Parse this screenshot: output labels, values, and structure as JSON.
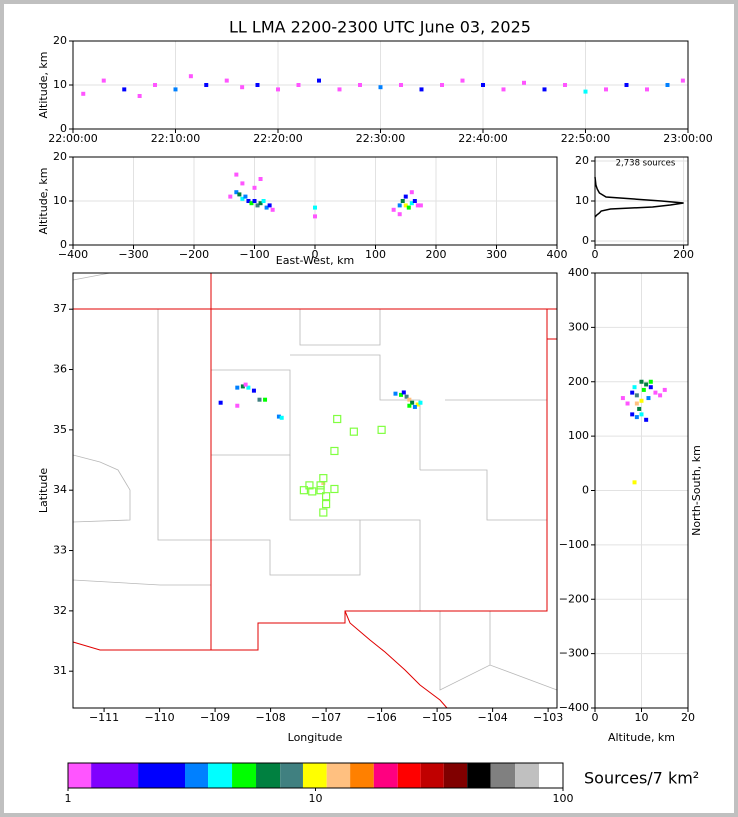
{
  "chart_data": [
    {
      "type": "scatter",
      "title": "LL LMA 2200-2300 UTC June 03, 2025",
      "ylabel": "Altitude, km",
      "xlim": [
        0,
        60
      ],
      "ylim": [
        0,
        20
      ],
      "xticks": [
        {
          "value": 0,
          "label": "22:00:00"
        },
        {
          "value": 10,
          "label": "22:10:00"
        },
        {
          "value": 20,
          "label": "22:20:00"
        },
        {
          "value": 30,
          "label": "22:30:00"
        },
        {
          "value": 40,
          "label": "22:40:00"
        },
        {
          "value": 50,
          "label": "22:50:00"
        },
        {
          "value": 60,
          "label": "23:00:00"
        }
      ],
      "yticks": [
        0,
        10,
        20
      ],
      "grid": true,
      "series": [
        {
          "x": [
            1,
            3,
            5,
            6.5,
            8,
            10,
            11.5,
            13,
            15,
            16.5,
            18,
            20,
            22,
            24,
            26,
            28,
            30,
            32,
            34,
            36,
            38,
            40,
            42,
            44,
            46,
            48,
            50,
            52,
            54,
            56,
            58,
            59.5
          ],
          "y": [
            8,
            11,
            9,
            7.5,
            10,
            9,
            12,
            10,
            11,
            9.5,
            10,
            9,
            10,
            11,
            9,
            10,
            9.5,
            10,
            9,
            10,
            11,
            10,
            9,
            10.5,
            9,
            10,
            8.5,
            9,
            10,
            9,
            10,
            11
          ],
          "density": [
            1,
            1,
            2,
            1,
            1,
            3,
            1,
            2,
            1,
            1,
            2,
            1,
            1,
            2,
            1,
            1,
            3,
            1,
            2,
            1,
            1,
            2,
            1,
            1,
            2,
            1,
            4,
            1,
            2,
            1,
            3,
            1
          ]
        }
      ]
    },
    {
      "type": "scatter",
      "xlabel": "East-West, km",
      "ylabel": "Altitude, km",
      "xlim": [
        -400,
        400
      ],
      "ylim": [
        0,
        20
      ],
      "xticks": [
        {
          "value": -400,
          "label": "−400"
        },
        {
          "value": -300,
          "label": "−300"
        },
        {
          "value": -200,
          "label": "−200"
        },
        {
          "value": -100,
          "label": "−100"
        },
        0,
        100,
        200,
        300,
        400
      ],
      "yticks": [
        0,
        10,
        20
      ],
      "grid": true,
      "series": [
        {
          "x": [
            -140,
            -130,
            -125,
            -120,
            -115,
            -110,
            -105,
            -100,
            -95,
            -90,
            -85,
            -80,
            -75,
            -70,
            -130,
            -120,
            -100,
            -90,
            0,
            0,
            130,
            140,
            145,
            150,
            155,
            160,
            165,
            170,
            150,
            160,
            140,
            175
          ],
          "y": [
            11,
            12,
            11.5,
            10.5,
            11,
            10,
            9.5,
            10,
            9,
            9.5,
            10,
            8.5,
            9,
            8,
            16,
            14,
            13,
            15,
            8.5,
            6.5,
            8,
            9,
            10,
            9,
            8.5,
            9.5,
            10,
            9,
            11,
            12,
            7,
            9
          ],
          "density": [
            1,
            3,
            6,
            4,
            3,
            2,
            5,
            2,
            8,
            6,
            4,
            3,
            2,
            1,
            1,
            1,
            1,
            1,
            4,
            1,
            1,
            3,
            6,
            9,
            5,
            4,
            2,
            1,
            2,
            1,
            1,
            1
          ]
        }
      ]
    },
    {
      "type": "line",
      "annotation": "2,738 sources",
      "xlim": [
        0,
        210
      ],
      "ylim": [
        -1,
        21
      ],
      "xticks": [
        0,
        200
      ],
      "yticks": [
        0,
        10,
        20
      ],
      "grid": true,
      "color": "#000000",
      "series": [
        {
          "x": [
            0,
            4,
            10,
            14,
            35,
            130,
            170,
            200,
            150,
            25,
            10,
            5,
            2,
            0
          ],
          "y": [
            6,
            6.5,
            7,
            7.5,
            8,
            8.5,
            9,
            9.5,
            10,
            11,
            12,
            13,
            14,
            16
          ]
        }
      ]
    },
    {
      "type": "scatter",
      "xlabel": "Longitude",
      "ylabel": "Latitude",
      "xlim": [
        -111.56,
        -102.84
      ],
      "ylim": [
        30.39,
        37.6
      ],
      "xticks": [
        {
          "value": -111,
          "label": "−111"
        },
        {
          "value": -110,
          "label": "−110"
        },
        {
          "value": -109,
          "label": "−109"
        },
        {
          "value": -108,
          "label": "−108"
        },
        {
          "value": -107,
          "label": "−107"
        },
        {
          "value": -106,
          "label": "−106"
        },
        {
          "value": -105,
          "label": "−105"
        },
        {
          "value": -104,
          "label": "−104"
        },
        {
          "value": -103,
          "label": "−103"
        }
      ],
      "yticks": [
        31,
        32,
        33,
        34,
        35,
        36,
        37
      ],
      "grid": false,
      "series": [
        {
          "x": [
            -108.6,
            -108.5,
            -108.4,
            -108.3,
            -108.2,
            -108.1,
            -108.9,
            -108.6,
            -107.85,
            -107.8,
            -107.05,
            -105.75,
            -105.65,
            -105.55,
            -105.5,
            -105.45,
            -105.35,
            -105.3,
            -105.6,
            -105.4,
            -108.45,
            -105.5
          ],
          "y": [
            35.7,
            35.72,
            35.7,
            35.65,
            35.5,
            35.5,
            35.45,
            35.4,
            35.22,
            35.2,
            34.12,
            35.6,
            35.58,
            35.55,
            35.5,
            35.45,
            35.42,
            35.45,
            35.62,
            35.38,
            35.75,
            35.4
          ],
          "density": [
            3,
            6,
            4,
            2,
            8,
            5,
            2,
            1,
            3,
            4,
            12,
            3,
            5,
            8,
            12,
            6,
            9,
            4,
            2,
            3,
            1,
            5
          ]
        },
        {
          "marker": "square",
          "color": "#80ff40",
          "x": [
            -106.8,
            -106.5,
            -106.0,
            -106.85,
            -107.05,
            -107.3,
            -107.1,
            -107.4,
            -107.25,
            -107.1,
            -106.85,
            -107.0,
            -107.0,
            -107.05
          ],
          "y": [
            35.18,
            34.97,
            35.0,
            34.65,
            34.2,
            34.08,
            34.08,
            34.0,
            33.98,
            34.0,
            34.02,
            33.9,
            33.77,
            33.63
          ]
        }
      ]
    },
    {
      "type": "scatter",
      "xlabel": "Altitude, km",
      "ylabel": "North-South, km",
      "xlim": [
        0,
        20
      ],
      "ylim": [
        -400,
        400
      ],
      "xticks": [
        0,
        10,
        20
      ],
      "yticks": [
        {
          "value": -400,
          "label": "−400"
        },
        {
          "value": -300,
          "label": "−300"
        },
        {
          "value": -200,
          "label": "−200"
        },
        {
          "value": -100,
          "label": "−100"
        },
        0,
        100,
        200,
        300,
        400
      ],
      "grid": true,
      "series": [
        {
          "x": [
            6,
            7,
            8,
            8.5,
            9,
            9.5,
            10,
            10.5,
            11,
            11.5,
            12,
            13,
            14,
            15,
            9,
            10,
            11,
            8,
            9,
            10,
            12,
            8.5
          ],
          "y": [
            170,
            160,
            180,
            190,
            175,
            150,
            165,
            185,
            195,
            170,
            190,
            180,
            175,
            185,
            135,
            140,
            130,
            140,
            160,
            200,
            200,
            15
          ],
          "density": [
            1,
            1,
            2,
            4,
            8,
            6,
            9,
            5,
            7,
            3,
            2,
            1,
            1,
            1,
            3,
            4,
            2,
            2,
            12,
            6,
            5,
            10
          ]
        }
      ]
    },
    {
      "type": "colorbar",
      "label": "Sources/7 km²",
      "log": true,
      "lim": [
        1,
        100
      ],
      "ticks": [
        1,
        10,
        100
      ],
      "bounds": [
        1,
        1.24,
        1.92,
        2.97,
        3.68,
        4.6,
        5.75,
        7.2,
        8.9,
        11.1,
        13.8,
        17.2,
        21.5,
        26.6,
        33,
        41,
        51,
        64,
        80,
        100
      ],
      "colors": [
        "#ff55ff",
        "#8000ff",
        "#0000ff",
        "#0080ff",
        "#00ffff",
        "#00ff00",
        "#008040",
        "#408080",
        "#ffff00",
        "#ffc080",
        "#ff8000",
        "#ff0080",
        "#ff0000",
        "#c00000",
        "#800000",
        "#000000",
        "#808080",
        "#c0c0c0",
        "#ffffff"
      ]
    }
  ]
}
